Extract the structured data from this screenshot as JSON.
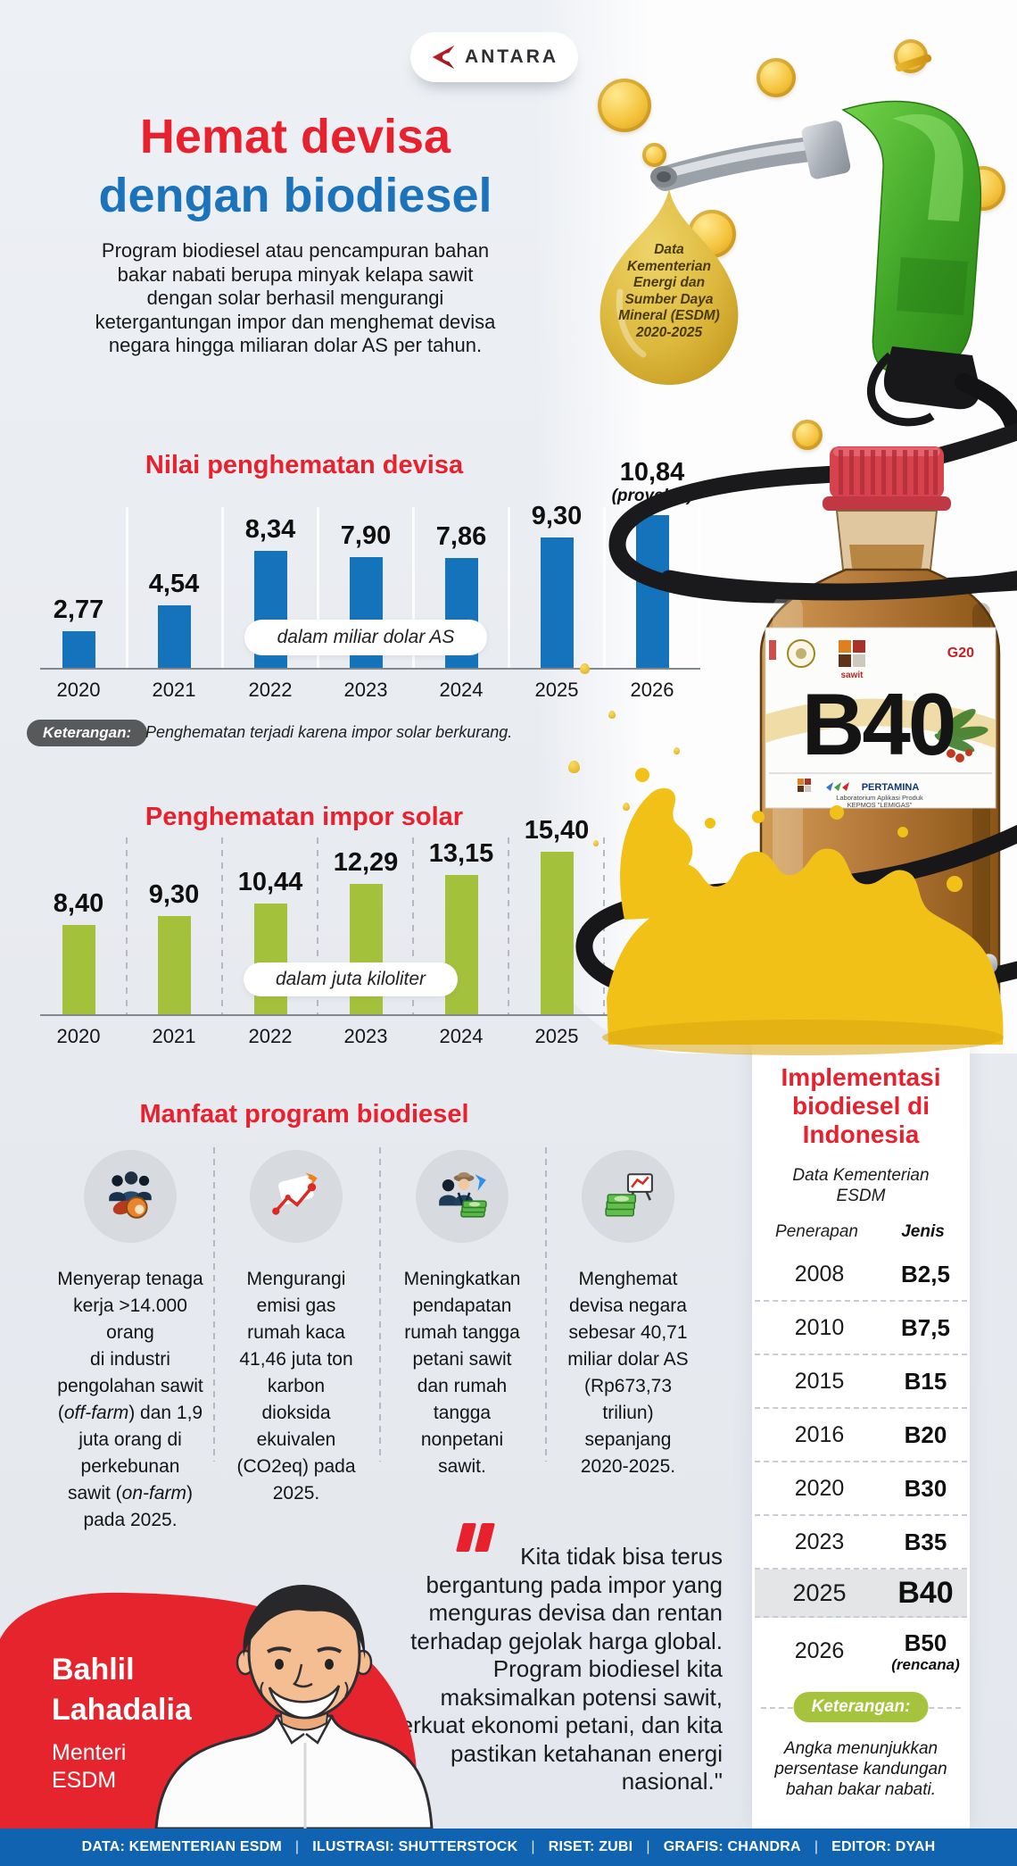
{
  "brand": {
    "name": "ANTARA"
  },
  "header": {
    "title_line1": "Hemat devisa",
    "title_line2": "dengan biodiesel",
    "intro": "Program biodiesel atau pencampuran bahan\nbakar nabati berupa minyak kelapa sawit\ndengan solar berhasil mengurangi\nketergantungan impor dan menghemat devisa\nnegara hingga miliaran dolar AS per tahun.",
    "source_note": "Data\nKementerian\nEnergi dan\nSumber Daya\nMineral (ESDM)\n2020-2025"
  },
  "chart_data": [
    {
      "type": "bar",
      "title": "Nilai penghematan devisa",
      "unit_label": "dalam miliar dolar AS",
      "categories": [
        "2020",
        "2021",
        "2022",
        "2023",
        "2024",
        "2025",
        "2026"
      ],
      "values": [
        2.77,
        4.54,
        8.34,
        7.9,
        7.86,
        9.3,
        10.84
      ],
      "value_labels": [
        "2,77",
        "4,54",
        "8,34",
        "7,90",
        "7,86",
        "9,30",
        "10,84"
      ],
      "annotation": {
        "category": "2026",
        "label": "(proyeksi)"
      },
      "bar_color": "#1473ba",
      "note_label": "Keterangan:",
      "note_text": "Penghematan terjadi karena impor solar berkurang.",
      "xlabel": "",
      "ylabel": "",
      "grid": "vertical-solid",
      "legend_position": "none"
    },
    {
      "type": "bar",
      "title": "Penghematan impor solar",
      "unit_label": "dalam juta kiloliter",
      "categories": [
        "2020",
        "2021",
        "2022",
        "2023",
        "2024",
        "2025"
      ],
      "values": [
        8.4,
        9.3,
        10.44,
        12.29,
        13.15,
        15.4
      ],
      "value_labels": [
        "8,40",
        "9,30",
        "10,44",
        "12,29",
        "13,15",
        "15,40"
      ],
      "bar_color": "#a4c13b",
      "xlabel": "",
      "ylabel": "",
      "grid": "vertical-dashed",
      "legend_position": "none"
    }
  ],
  "benefits": {
    "title": "Manfaat program biodiesel",
    "items": [
      {
        "icon": "workers-palm-icon",
        "text": "Menyerap tenaga\nkerja >14.000\norang\ndi industri\npengolahan sawit\n(*off-farm*) dan 1,9\njuta orang di\nperkebunan\nsawit (*on-farm*)\npada 2025."
      },
      {
        "icon": "emissions-chart-icon",
        "text": "Mengurangi\nemisi gas\nrumah kaca\n41,46 juta ton\nkarbon\ndioksida\nekuivalen\n(CO2eq) pada\n2025."
      },
      {
        "icon": "farmer-income-icon",
        "text": "Meningkatkan\npendapatan\nrumah tangga\npetani sawit\ndan rumah\ntangga\nnonpetani\nsawit."
      },
      {
        "icon": "devisa-savings-icon",
        "text": "Menghemat\ndevisa negara\nsebesar 40,71\nmiliar dolar AS\n(Rp673,73\ntriliun)\nsepanjang\n2020-2025."
      }
    ]
  },
  "bottle": {
    "label": "B40",
    "brand": "PERTAMINA",
    "mark_sawit": "sawit",
    "mark_g20": "G20",
    "lab_line1": "Laboratorium Aplikasi Produk",
    "lab_line2": "KEPMOS \"LEMIGAS\""
  },
  "implementation": {
    "title": "Implementasi\nbiodiesel di\nIndonesia",
    "subtitle": "Data Kementerian\nESDM",
    "col_penerapan": "Penerapan",
    "col_jenis": "Jenis",
    "rows": [
      [
        "2008",
        "B2,5"
      ],
      [
        "2010",
        "B7,5"
      ],
      [
        "2015",
        "B15"
      ],
      [
        "2016",
        "B20"
      ],
      [
        "2020",
        "B30"
      ],
      [
        "2023",
        "B35"
      ],
      [
        "2025",
        "B40"
      ],
      [
        "2026",
        "B50"
      ]
    ],
    "highlight_year": "2025",
    "plan": {
      "year": "2026",
      "note": "(rencana)"
    },
    "legend_label": "Keterangan:",
    "legend_note": "Angka menunjukkan\npersentase kandungan\nbahan bakar nabati."
  },
  "quote": {
    "text": "Kita tidak bisa terus\nbergantung pada impor yang\nmenguras devisa dan rentan\nterhadap gejolak harga global.\nProgram biodiesel kita\nmaksimalkan potensi sawit,\nperkuat ekonomi petani, dan kita\npastikan ketahanan  energi\nnasional.\"",
    "author": "Bahlil\nLahadalia",
    "role": "Menteri\nESDM"
  },
  "footer": {
    "credits": [
      "DATA: KEMENTERIAN ESDM",
      "ILUSTRASI: SHUTTERSTOCK",
      "RISET: ZUBI",
      "GRAFIS: CHANDRA",
      "EDITOR: DYAH"
    ],
    "separator": "|"
  },
  "colors": {
    "red_accent": "#e8212e",
    "blue_accent": "#1b74bb",
    "bar_blue": "#1473ba",
    "bar_green": "#a4c13b",
    "footer_blue": "#1063b1",
    "dark_pill": "#58595b",
    "green_pill": "#a6c33d",
    "highlight_row": "#e4e5e7",
    "gold": "#f2c23a",
    "splash_yellow": "#f1c117"
  }
}
